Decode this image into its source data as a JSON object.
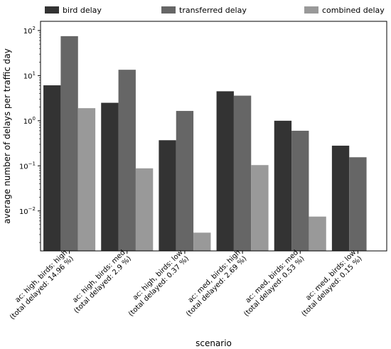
{
  "chart_data": {
    "type": "bar",
    "title": "",
    "xlabel": "scenario",
    "ylabel": "average number of delays per traffic day",
    "yscale": "log",
    "ylim": [
      0.0013,
      160
    ],
    "grid": false,
    "legend_position": "top",
    "y_ticks": [
      {
        "value": 100,
        "base": "10",
        "exp": "2"
      },
      {
        "value": 10,
        "base": "10",
        "exp": "1"
      },
      {
        "value": 1,
        "base": "10",
        "exp": "0"
      },
      {
        "value": 0.1,
        "base": "10",
        "exp": "−1"
      },
      {
        "value": 0.01,
        "base": "10",
        "exp": "−2"
      }
    ],
    "categories": [
      [
        "ac: high, birds: high",
        "(total delayed: 14.96 %)"
      ],
      [
        "ac: high, birds: med",
        "(total delayed: 2.9 %)"
      ],
      [
        "ac: high, birds: low",
        "(total delayed: 0.37 %)"
      ],
      [
        "ac: med, birds: high",
        "(total delayed: 2.69 %)"
      ],
      [
        "ac: med, birds: med",
        "(total delayed: 0.53 %)"
      ],
      [
        "ac: med, birds: low",
        "(total delayed: 0.15 %)"
      ]
    ],
    "series": [
      {
        "name": "bird delay",
        "color": "#333333",
        "values": [
          6.1,
          2.5,
          0.37,
          4.5,
          1.0,
          0.28
        ]
      },
      {
        "name": "transferred delay",
        "color": "#666666",
        "values": [
          75,
          13.5,
          1.65,
          3.6,
          0.6,
          0.155
        ]
      },
      {
        "name": "combined delay",
        "color": "#999999",
        "values": [
          1.9,
          0.088,
          0.0033,
          0.104,
          0.0075,
          null
        ]
      }
    ]
  }
}
